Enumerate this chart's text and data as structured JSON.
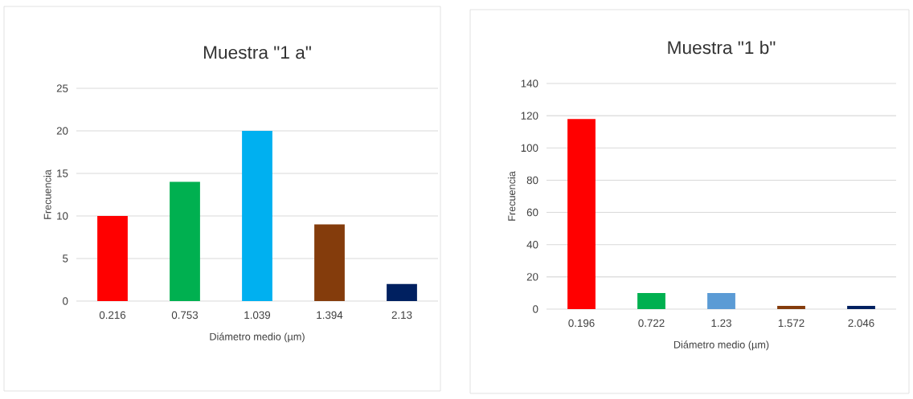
{
  "chart_data": [
    {
      "type": "bar",
      "title": "Muestra \"1 a\"",
      "xlabel": "Diámetro medio (µm)",
      "ylabel": "Frecuencia",
      "categories": [
        "0.216",
        "0.753",
        "1.039",
        "1.394",
        "2.13"
      ],
      "values": [
        10,
        14,
        20,
        9,
        2
      ],
      "colors": [
        "#ff0000",
        "#00b050",
        "#00b0f0",
        "#843c0c",
        "#002060"
      ],
      "ylim": [
        0,
        25
      ],
      "yticks": [
        0,
        5,
        10,
        15,
        20,
        25
      ],
      "grid": "y"
    },
    {
      "type": "bar",
      "title": "Muestra \"1 b\"",
      "xlabel": "Diámetro medio (µm)",
      "ylabel": "Frecuencia",
      "categories": [
        "0.196",
        "0.722",
        "1.23",
        "1.572",
        "2.046"
      ],
      "values": [
        118,
        10,
        10,
        2,
        2
      ],
      "colors": [
        "#ff0000",
        "#00b050",
        "#5b9bd5",
        "#843c0c",
        "#002060"
      ],
      "ylim": [
        0,
        140
      ],
      "yticks": [
        0,
        20,
        40,
        60,
        80,
        100,
        120,
        140
      ],
      "grid": "y"
    }
  ]
}
